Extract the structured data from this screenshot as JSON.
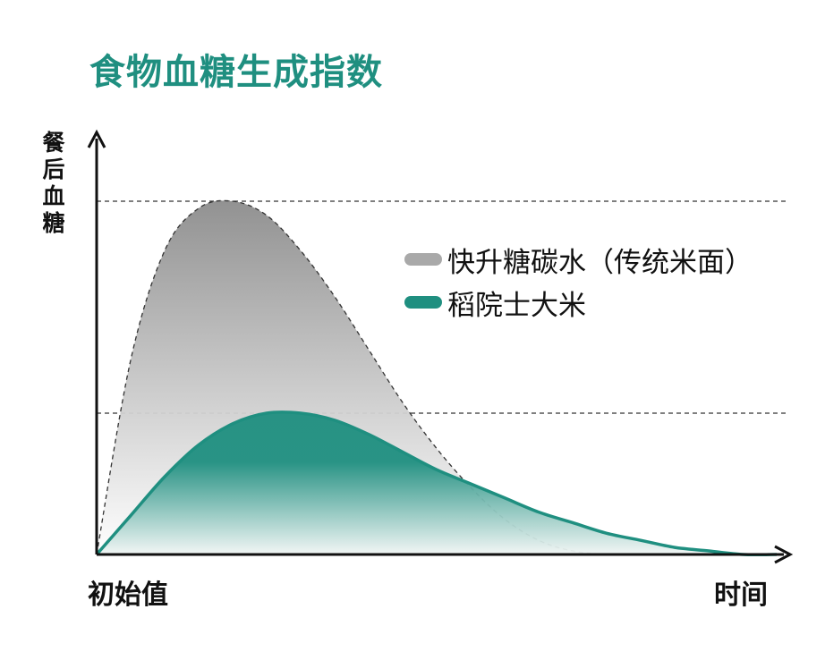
{
  "title": "食物血糖生成指数",
  "chart_data": {
    "type": "area",
    "title": "食物血糖生成指数",
    "ylabel": "餐后血糖",
    "xlabel_start": "初始值",
    "xlabel_end": "时间",
    "x": [
      0,
      0.05,
      0.1,
      0.15,
      0.2,
      0.25,
      0.3,
      0.35,
      0.4,
      0.45,
      0.5,
      0.55,
      0.6,
      0.65,
      0.7,
      0.75,
      0.8,
      0.85,
      0.9,
      0.95,
      1.0
    ],
    "xlim": [
      0,
      1
    ],
    "ylim": [
      0,
      1
    ],
    "reference_lines": [
      1.0,
      0.4
    ],
    "series": [
      {
        "name": "快升糖碳水（传统米面）",
        "color": "#a9a9a9",
        "values": [
          0.0,
          0.55,
          0.86,
          0.98,
          1.0,
          0.96,
          0.86,
          0.73,
          0.58,
          0.43,
          0.3,
          0.19,
          0.1,
          0.04,
          0.01,
          0.0,
          null,
          null,
          null,
          null,
          null
        ]
      },
      {
        "name": "稻院士大米",
        "color": "#1f8f80",
        "values": [
          0.0,
          0.11,
          0.22,
          0.31,
          0.37,
          0.4,
          0.4,
          0.38,
          0.34,
          0.29,
          0.24,
          0.2,
          0.16,
          0.12,
          0.09,
          0.06,
          0.04,
          0.02,
          0.01,
          0.0,
          0.0
        ]
      }
    ],
    "legend": "right-middle"
  }
}
